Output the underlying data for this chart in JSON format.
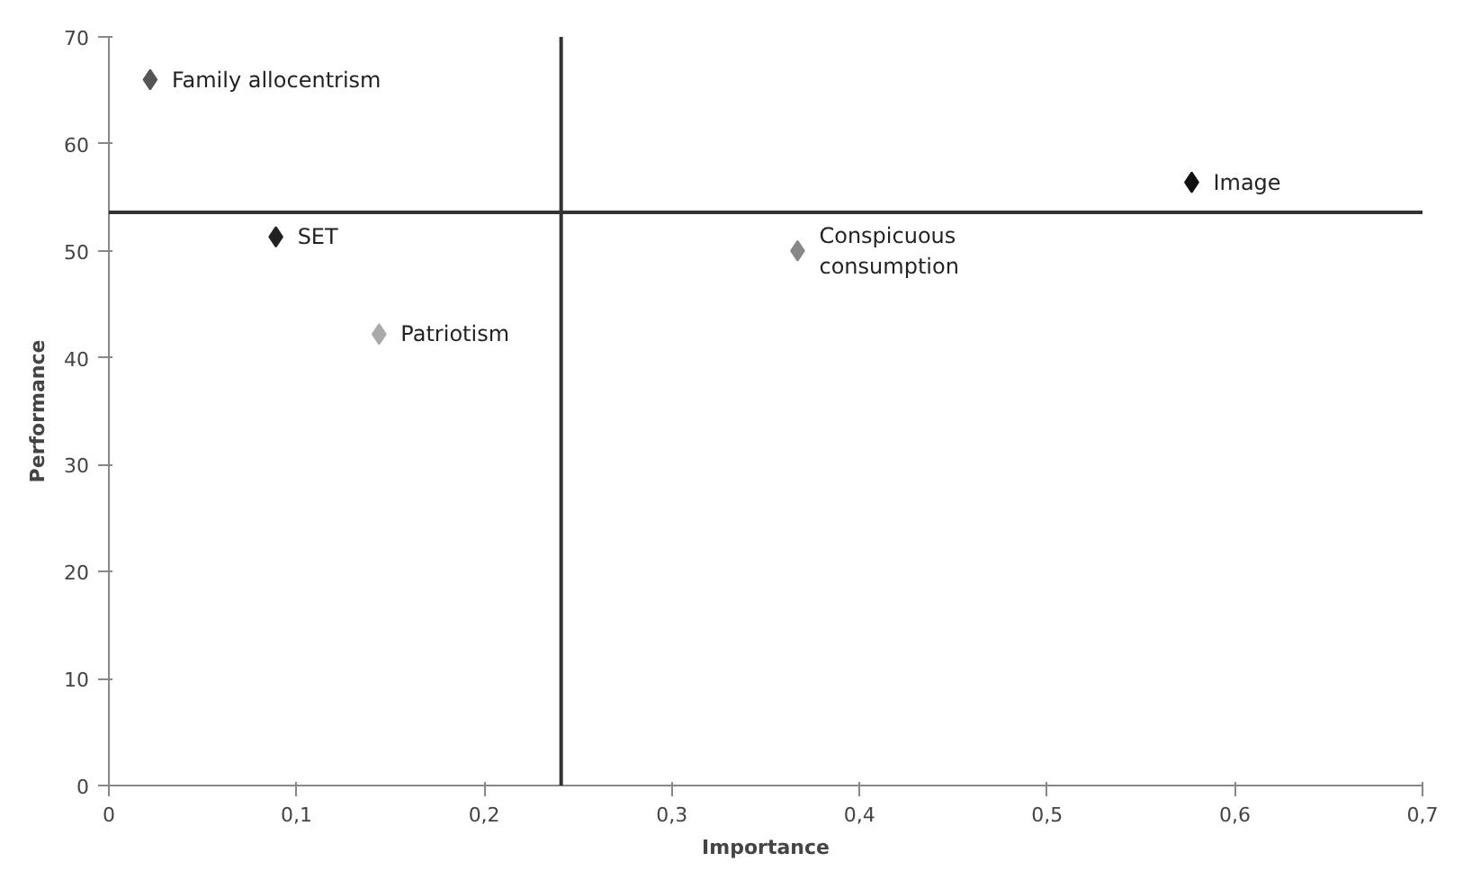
{
  "chart_data": {
    "type": "scatter",
    "xlabel": "Importance",
    "ylabel": "Performance",
    "marker": "diamond",
    "grid": false,
    "xlim": [
      0,
      0.7
    ],
    "ylim": [
      0,
      70
    ],
    "xticks": [
      0,
      {
        "value": 0.1,
        "label": "0,1"
      },
      {
        "value": 0.2,
        "label": "0,2"
      },
      {
        "value": 0.3,
        "label": "0,3"
      },
      {
        "value": 0.4,
        "label": "0,4"
      },
      {
        "value": 0.5,
        "label": "0,5"
      },
      {
        "value": 0.6,
        "label": "0,6"
      },
      {
        "value": 0.7,
        "label": "0,7"
      }
    ],
    "yticks": [
      0,
      10,
      20,
      30,
      40,
      50,
      60,
      70
    ],
    "series": [
      {
        "name": "Family allocentrism",
        "color": "#555555",
        "x": [
          0.022
        ],
        "values": [
          66
        ]
      },
      {
        "name": "SET",
        "color": "#222222",
        "x": [
          0.089
        ],
        "values": [
          51.3
        ]
      },
      {
        "name": "Patriotism",
        "color": "#aaaaaa",
        "x": [
          0.144
        ],
        "values": [
          42.2
        ]
      },
      {
        "name": "Conspicuous\nconsumption",
        "color": "#888888",
        "x": [
          0.367
        ],
        "values": [
          50
        ]
      },
      {
        "name": "Image",
        "color": "#111111",
        "x": [
          0.577
        ],
        "values": [
          56.4
        ]
      }
    ],
    "ref_lines": [
      {
        "axis": "x",
        "value": 0.241,
        "color": "#333333"
      },
      {
        "axis": "y",
        "value": 53.6,
        "color": "#333333"
      }
    ]
  }
}
